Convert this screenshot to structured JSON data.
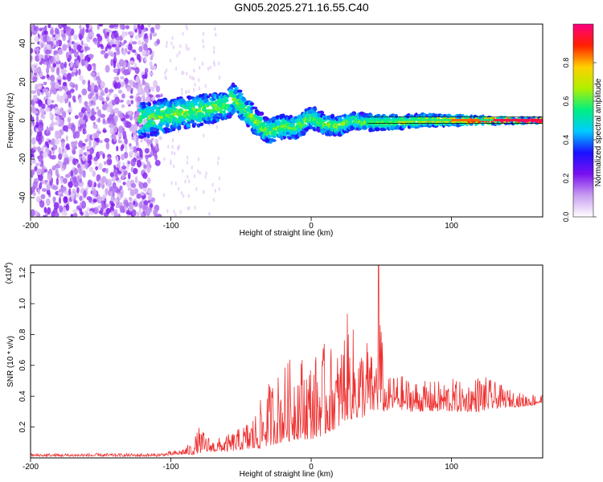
{
  "chart_data": [
    {
      "type": "heatmap",
      "title": "GN05.2025.271.16.55.C40",
      "xlabel": "Height of straight line (km)",
      "ylabel": "Frequency (Hz)",
      "xlim": [
        -200,
        165
      ],
      "ylim": [
        -50,
        50
      ],
      "xticks": [
        -200,
        -100,
        0,
        100
      ],
      "yticks": [
        -40,
        -20,
        0,
        20,
        40
      ],
      "colorbar": {
        "label": "Normalized spectral amplitude",
        "range": [
          0,
          1
        ],
        "ticks": [
          "0.0",
          "0.2",
          "0.4",
          "0.6",
          "0.8"
        ],
        "tick_values": [
          0,
          0.2,
          0.4,
          0.6,
          0.8
        ],
        "colors": [
          "#ffffff",
          "#c89ef0",
          "#7a10f0",
          "#1a10ff",
          "#00ccff",
          "#00f080",
          "#b0f000",
          "#ffd000",
          "#ff2000",
          "#ff0080"
        ]
      },
      "ridge": {
        "x": [
          -120,
          -100,
          -80,
          -60,
          -55,
          -50,
          -40,
          -30,
          -20,
          -10,
          0,
          10,
          20,
          30,
          40,
          60,
          80,
          100,
          120,
          140,
          165
        ],
        "frequency": [
          0,
          3,
          5,
          8,
          12,
          8,
          0,
          -6,
          -3,
          -4,
          2,
          -2,
          -3,
          0,
          -1,
          -1,
          0,
          0,
          0,
          0,
          0
        ]
      }
    },
    {
      "type": "line",
      "xlabel": "Height of straight line (km)",
      "ylabel": "SNR (10 * v/v)",
      "y_multiplier": "(x10",
      "y_multiplier_exp": "4",
      "y_multiplier_close": ")",
      "xlim": [
        -200,
        165
      ],
      "ylim": [
        0,
        1.25
      ],
      "xticks": [
        -200,
        -100,
        0,
        100
      ],
      "yticks": [
        "0.2",
        "0.4",
        "0.6",
        "0.8",
        "1.0",
        "1.2"
      ],
      "ytick_values": [
        0.2,
        0.4,
        0.6,
        0.8,
        1.0,
        1.2
      ],
      "series_color": "#ee3030",
      "envelope": {
        "x": [
          -200,
          -110,
          -95,
          -85,
          -80,
          -70,
          -60,
          -50,
          -40,
          -30,
          -20,
          -10,
          0,
          10,
          20,
          25,
          30,
          35,
          40,
          45,
          48,
          52,
          60,
          70,
          80,
          90,
          100,
          110,
          120,
          130,
          140,
          150,
          165
        ],
        "peak": [
          0.03,
          0.03,
          0.05,
          0.1,
          0.2,
          0.12,
          0.15,
          0.2,
          0.3,
          0.5,
          0.6,
          0.7,
          0.65,
          0.75,
          0.7,
          0.95,
          0.85,
          0.75,
          0.8,
          0.6,
          1.25,
          0.5,
          0.55,
          0.52,
          0.5,
          0.5,
          0.52,
          0.48,
          0.55,
          0.5,
          0.45,
          0.42,
          0.42
        ],
        "base": [
          0.01,
          0.01,
          0.02,
          0.02,
          0.03,
          0.04,
          0.04,
          0.05,
          0.05,
          0.08,
          0.1,
          0.12,
          0.12,
          0.15,
          0.2,
          0.25,
          0.25,
          0.25,
          0.28,
          0.3,
          0.3,
          0.3,
          0.32,
          0.3,
          0.3,
          0.3,
          0.3,
          0.3,
          0.3,
          0.32,
          0.33,
          0.33,
          0.35
        ]
      }
    }
  ]
}
